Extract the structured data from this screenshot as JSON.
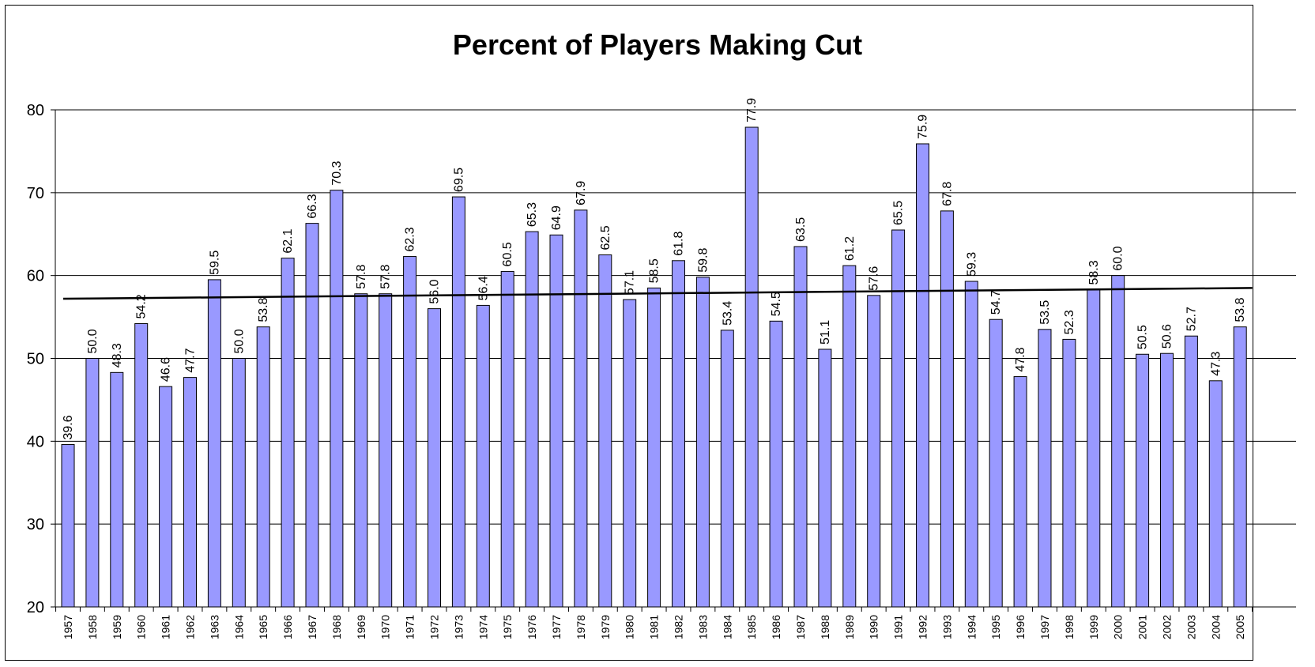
{
  "chart_data": {
    "type": "bar",
    "title": "Percent of Players Making Cut",
    "xlabel": "",
    "ylabel": "",
    "ylim": [
      20,
      80
    ],
    "yticks": [
      20,
      30,
      40,
      50,
      60,
      70,
      80
    ],
    "grid": true,
    "legend": "none",
    "bar_color": "#9999ff",
    "bar_edge_color": "#000000",
    "categories": [
      "1957",
      "1958",
      "1959",
      "1960",
      "1961",
      "1962",
      "1963",
      "1964",
      "1965",
      "1966",
      "1967",
      "1968",
      "1969",
      "1970",
      "1971",
      "1972",
      "1973",
      "1974",
      "1975",
      "1976",
      "1977",
      "1978",
      "1979",
      "1980",
      "1981",
      "1982",
      "1983",
      "1984",
      "1985",
      "1986",
      "1987",
      "1988",
      "1989",
      "1990",
      "1991",
      "1992",
      "1993",
      "1994",
      "1995",
      "1996",
      "1997",
      "1998",
      "1999",
      "2000",
      "2001",
      "2002",
      "2003",
      "2004",
      "2005"
    ],
    "values": [
      39.6,
      50.0,
      48.3,
      54.2,
      46.6,
      47.7,
      59.5,
      50.0,
      53.8,
      62.1,
      66.3,
      70.3,
      57.8,
      57.8,
      62.3,
      56.0,
      69.5,
      56.4,
      60.5,
      65.3,
      64.9,
      67.9,
      62.5,
      57.1,
      58.5,
      61.8,
      59.8,
      53.4,
      77.9,
      54.5,
      63.5,
      51.1,
      61.2,
      57.6,
      65.5,
      75.9,
      67.8,
      59.3,
      54.7,
      47.8,
      53.5,
      52.3,
      58.3,
      60.0,
      50.5,
      50.6,
      52.7,
      47.3,
      53.8
    ],
    "data_labels": [
      "39.6",
      "50.0",
      "48.3",
      "54.2",
      "46.6",
      "47.7",
      "59.5",
      "50.0",
      "53.8",
      "62.1",
      "66.3",
      "70.3",
      "57.8",
      "57.8",
      "62.3",
      "56.0",
      "69.5",
      "56.4",
      "60.5",
      "65.3",
      "64.9",
      "67.9",
      "62.5",
      "57.1",
      "58.5",
      "61.8",
      "59.8",
      "53.4",
      "77.9",
      "54.5",
      "63.5",
      "51.1",
      "61.2",
      "57.6",
      "65.5",
      "75.9",
      "67.8",
      "59.3",
      "54.7",
      "47.8",
      "53.5",
      "52.3",
      "58.3",
      "60.0",
      "50.5",
      "50.6",
      "52.7",
      "47.3",
      "53.8"
    ],
    "trendline": {
      "type": "linear",
      "color": "#000000",
      "start_value": 57.2,
      "end_value": 58.5
    }
  }
}
